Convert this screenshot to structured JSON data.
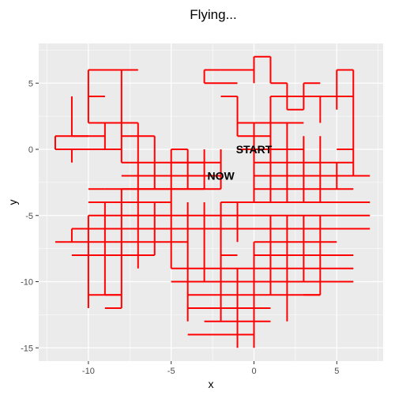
{
  "chart_data": {
    "type": "line",
    "title": "Flying...",
    "xlabel": "x",
    "ylabel": "y",
    "xlim": [
      -13,
      7.8
    ],
    "ylim": [
      -16,
      8.0
    ],
    "x_ticks": [
      -10,
      -5,
      0,
      5
    ],
    "x_tick_labels": [
      "-10",
      "-5",
      "0",
      "5"
    ],
    "y_ticks": [
      -15,
      -10,
      -5,
      0,
      5
    ],
    "y_tick_labels": [
      "-15",
      "-10",
      "-5",
      "0",
      "5"
    ],
    "grid": true,
    "legend": "none",
    "path_color": "#ff0000",
    "panel_background": "#ebebeb",
    "grid_color": "#ffffff",
    "annotations": [
      {
        "text": "START",
        "x": 0,
        "y": 0
      },
      {
        "text": "NOW",
        "x": -2,
        "y": -2
      }
    ],
    "segments": [
      [
        [
          -12,
          1
        ],
        [
          -12,
          0
        ]
      ],
      [
        [
          -12,
          0
        ],
        [
          -8,
          0
        ]
      ],
      [
        [
          -12,
          1
        ],
        [
          -10,
          1
        ]
      ],
      [
        [
          -11,
          0
        ],
        [
          -11,
          -1
        ]
      ],
      [
        [
          -10,
          6
        ],
        [
          -7,
          6
        ]
      ],
      [
        [
          -10,
          6
        ],
        [
          -10,
          2
        ]
      ],
      [
        [
          -10,
          4
        ],
        [
          -9,
          4
        ]
      ],
      [
        [
          -11,
          4
        ],
        [
          -11,
          1
        ]
      ],
      [
        [
          -11,
          1
        ],
        [
          -10,
          1
        ]
      ],
      [
        [
          -10,
          2
        ],
        [
          -7,
          2
        ]
      ],
      [
        [
          -10,
          1
        ],
        [
          -9,
          1
        ]
      ],
      [
        [
          -9,
          2
        ],
        [
          -9,
          0
        ]
      ],
      [
        [
          -8,
          6
        ],
        [
          -8,
          -1
        ]
      ],
      [
        [
          -8,
          1
        ],
        [
          -6,
          1
        ]
      ],
      [
        [
          -7,
          2
        ],
        [
          -7,
          -3
        ]
      ],
      [
        [
          -8,
          -1
        ],
        [
          -2,
          -1
        ]
      ],
      [
        [
          -8,
          -2
        ],
        [
          -2,
          -2
        ]
      ],
      [
        [
          -8,
          -3
        ],
        [
          -2,
          -3
        ]
      ],
      [
        [
          -6,
          1
        ],
        [
          -6,
          -3
        ]
      ],
      [
        [
          -5,
          0
        ],
        [
          -4,
          0
        ]
      ],
      [
        [
          -5,
          0
        ],
        [
          -5,
          -9
        ]
      ],
      [
        [
          -4,
          0
        ],
        [
          -4,
          -3
        ]
      ],
      [
        [
          -3,
          0
        ],
        [
          -3,
          -3
        ]
      ],
      [
        [
          -2,
          0
        ],
        [
          -2,
          -3
        ]
      ],
      [
        [
          -5,
          -1
        ],
        [
          -3,
          -1
        ]
      ],
      [
        [
          -10,
          -3
        ],
        [
          -9,
          -3
        ]
      ],
      [
        [
          -9,
          -3
        ],
        [
          -3,
          -3
        ]
      ],
      [
        [
          -10,
          -4
        ],
        [
          -5,
          -4
        ]
      ],
      [
        [
          -10,
          -5
        ],
        [
          7,
          -5
        ]
      ],
      [
        [
          -10,
          -5
        ],
        [
          -10,
          -12
        ]
      ],
      [
        [
          -11,
          -6
        ],
        [
          7,
          -6
        ]
      ],
      [
        [
          -11,
          -6
        ],
        [
          -11,
          -7
        ]
      ],
      [
        [
          -12,
          -7
        ],
        [
          -4,
          -7
        ]
      ],
      [
        [
          -11,
          -8
        ],
        [
          -6,
          -8
        ]
      ],
      [
        [
          -9,
          -4
        ],
        [
          -9,
          -11
        ]
      ],
      [
        [
          -8,
          -3
        ],
        [
          -8,
          -12
        ]
      ],
      [
        [
          -7,
          -3
        ],
        [
          -7,
          -9
        ]
      ],
      [
        [
          -6,
          -4
        ],
        [
          -6,
          -8
        ]
      ],
      [
        [
          -9,
          -11
        ],
        [
          -8,
          -11
        ]
      ],
      [
        [
          -9,
          -12
        ],
        [
          -8,
          -12
        ]
      ],
      [
        [
          -10,
          -11
        ],
        [
          -8,
          -11
        ]
      ],
      [
        [
          -3,
          -4
        ],
        [
          -3,
          -10
        ]
      ],
      [
        [
          -4,
          -4
        ],
        [
          -4,
          -13
        ]
      ],
      [
        [
          -2,
          -4
        ],
        [
          -2,
          -13
        ]
      ],
      [
        [
          -1,
          -4
        ],
        [
          -1,
          -7
        ]
      ],
      [
        [
          -2,
          -4
        ],
        [
          7,
          -4
        ]
      ],
      [
        [
          -5,
          -9
        ],
        [
          6,
          -9
        ]
      ],
      [
        [
          -5,
          -10
        ],
        [
          6,
          -10
        ]
      ],
      [
        [
          -4,
          -11
        ],
        [
          4,
          -11
        ]
      ],
      [
        [
          -4,
          -12
        ],
        [
          1,
          -12
        ]
      ],
      [
        [
          -3,
          -13
        ],
        [
          1,
          -13
        ]
      ],
      [
        [
          -3,
          -14
        ],
        [
          0,
          -14
        ]
      ],
      [
        [
          -4,
          -14
        ],
        [
          -1,
          -14
        ]
      ],
      [
        [
          -2,
          -8
        ],
        [
          -1,
          -8
        ]
      ],
      [
        [
          -1,
          -9
        ],
        [
          -1,
          -15
        ]
      ],
      [
        [
          0,
          -7
        ],
        [
          0,
          -15
        ]
      ],
      [
        [
          1,
          -5
        ],
        [
          1,
          -11
        ]
      ],
      [
        [
          2,
          -5
        ],
        [
          2,
          -12
        ]
      ],
      [
        [
          3,
          -5
        ],
        [
          3,
          -10
        ]
      ],
      [
        [
          4,
          -5
        ],
        [
          4,
          -11
        ]
      ],
      [
        [
          0,
          -7
        ],
        [
          5,
          -7
        ]
      ],
      [
        [
          0,
          -8
        ],
        [
          6,
          -8
        ]
      ],
      [
        [
          3,
          -11
        ],
        [
          4,
          -11
        ]
      ],
      [
        [
          2,
          -12
        ],
        [
          2,
          -13
        ]
      ],
      [
        [
          -3,
          6
        ],
        [
          -2,
          6
        ]
      ],
      [
        [
          -3,
          6
        ],
        [
          -3,
          5
        ]
      ],
      [
        [
          -3,
          5
        ],
        [
          -1,
          5
        ]
      ],
      [
        [
          -2,
          6
        ],
        [
          0,
          6
        ]
      ],
      [
        [
          -2,
          4
        ],
        [
          -1,
          4
        ]
      ],
      [
        [
          -1,
          4
        ],
        [
          -1,
          1
        ]
      ],
      [
        [
          0,
          7
        ],
        [
          1,
          7
        ]
      ],
      [
        [
          0,
          7
        ],
        [
          0,
          5
        ]
      ],
      [
        [
          1,
          7
        ],
        [
          1,
          5
        ]
      ],
      [
        [
          1,
          5
        ],
        [
          2,
          5
        ]
      ],
      [
        [
          2,
          5
        ],
        [
          2,
          3
        ]
      ],
      [
        [
          2,
          3
        ],
        [
          3,
          3
        ]
      ],
      [
        [
          3,
          5
        ],
        [
          3,
          3
        ]
      ],
      [
        [
          3,
          5
        ],
        [
          4,
          5
        ]
      ],
      [
        [
          2,
          4
        ],
        [
          6,
          4
        ]
      ],
      [
        [
          4,
          4
        ],
        [
          4,
          2
        ]
      ],
      [
        [
          5,
          6
        ],
        [
          6,
          6
        ]
      ],
      [
        [
          5,
          6
        ],
        [
          5,
          3
        ]
      ],
      [
        [
          6,
          6
        ],
        [
          6,
          -2
        ]
      ],
      [
        [
          5,
          0
        ],
        [
          6,
          0
        ]
      ],
      [
        [
          6,
          -2
        ],
        [
          7,
          -2
        ]
      ],
      [
        [
          1,
          4
        ],
        [
          4,
          4
        ]
      ],
      [
        [
          1,
          4
        ],
        [
          1,
          -4
        ]
      ],
      [
        [
          0,
          2
        ],
        [
          3,
          2
        ]
      ],
      [
        [
          0,
          2
        ],
        [
          0,
          -4
        ]
      ],
      [
        [
          -1,
          2
        ],
        [
          0,
          2
        ]
      ],
      [
        [
          -1,
          1
        ],
        [
          1,
          1
        ]
      ],
      [
        [
          0,
          0
        ],
        [
          3,
          0
        ]
      ],
      [
        [
          2,
          2
        ],
        [
          2,
          -4
        ]
      ],
      [
        [
          3,
          1
        ],
        [
          3,
          -4
        ]
      ],
      [
        [
          4,
          1
        ],
        [
          4,
          -4
        ]
      ],
      [
        [
          5,
          -1
        ],
        [
          5,
          -3
        ]
      ],
      [
        [
          0,
          -1
        ],
        [
          6,
          -1
        ]
      ],
      [
        [
          0,
          -2
        ],
        [
          6,
          -2
        ]
      ],
      [
        [
          0,
          -3
        ],
        [
          6,
          -3
        ]
      ],
      [
        [
          -2,
          -4
        ],
        [
          0,
          -4
        ]
      ],
      [
        [
          -1,
          0
        ],
        [
          0,
          0
        ]
      ]
    ]
  }
}
